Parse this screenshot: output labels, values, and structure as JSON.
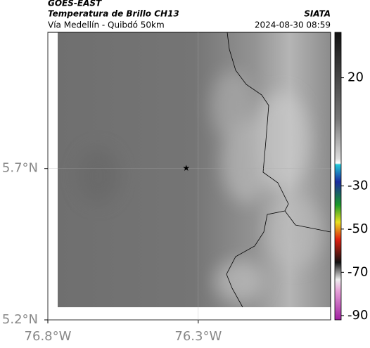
{
  "header": {
    "source": "GOES-EAST",
    "title": "Temperatura de Brillo CH13",
    "subtitle": "Vía Medellín - Quibdó 50km",
    "agency": "SIATA",
    "datetime": "2024-08-30 08:59"
  },
  "map": {
    "xlim": [
      -76.8,
      -75.86
    ],
    "ylim": [
      5.2,
      6.15
    ],
    "xticks": [
      {
        "value": -76.8,
        "label": "76.8°W"
      },
      {
        "value": -76.3,
        "label": "76.3°W"
      }
    ],
    "yticks": [
      {
        "value": 5.2,
        "label": "5.2°N"
      },
      {
        "value": 5.7,
        "label": "5.7°N"
      }
    ],
    "marker": {
      "lon": -76.34,
      "lat": 5.7
    }
  },
  "colorbar": {
    "lim": [
      -92,
      41
    ],
    "ticks": [
      20,
      -30,
      -50,
      -70,
      -90
    ]
  }
}
